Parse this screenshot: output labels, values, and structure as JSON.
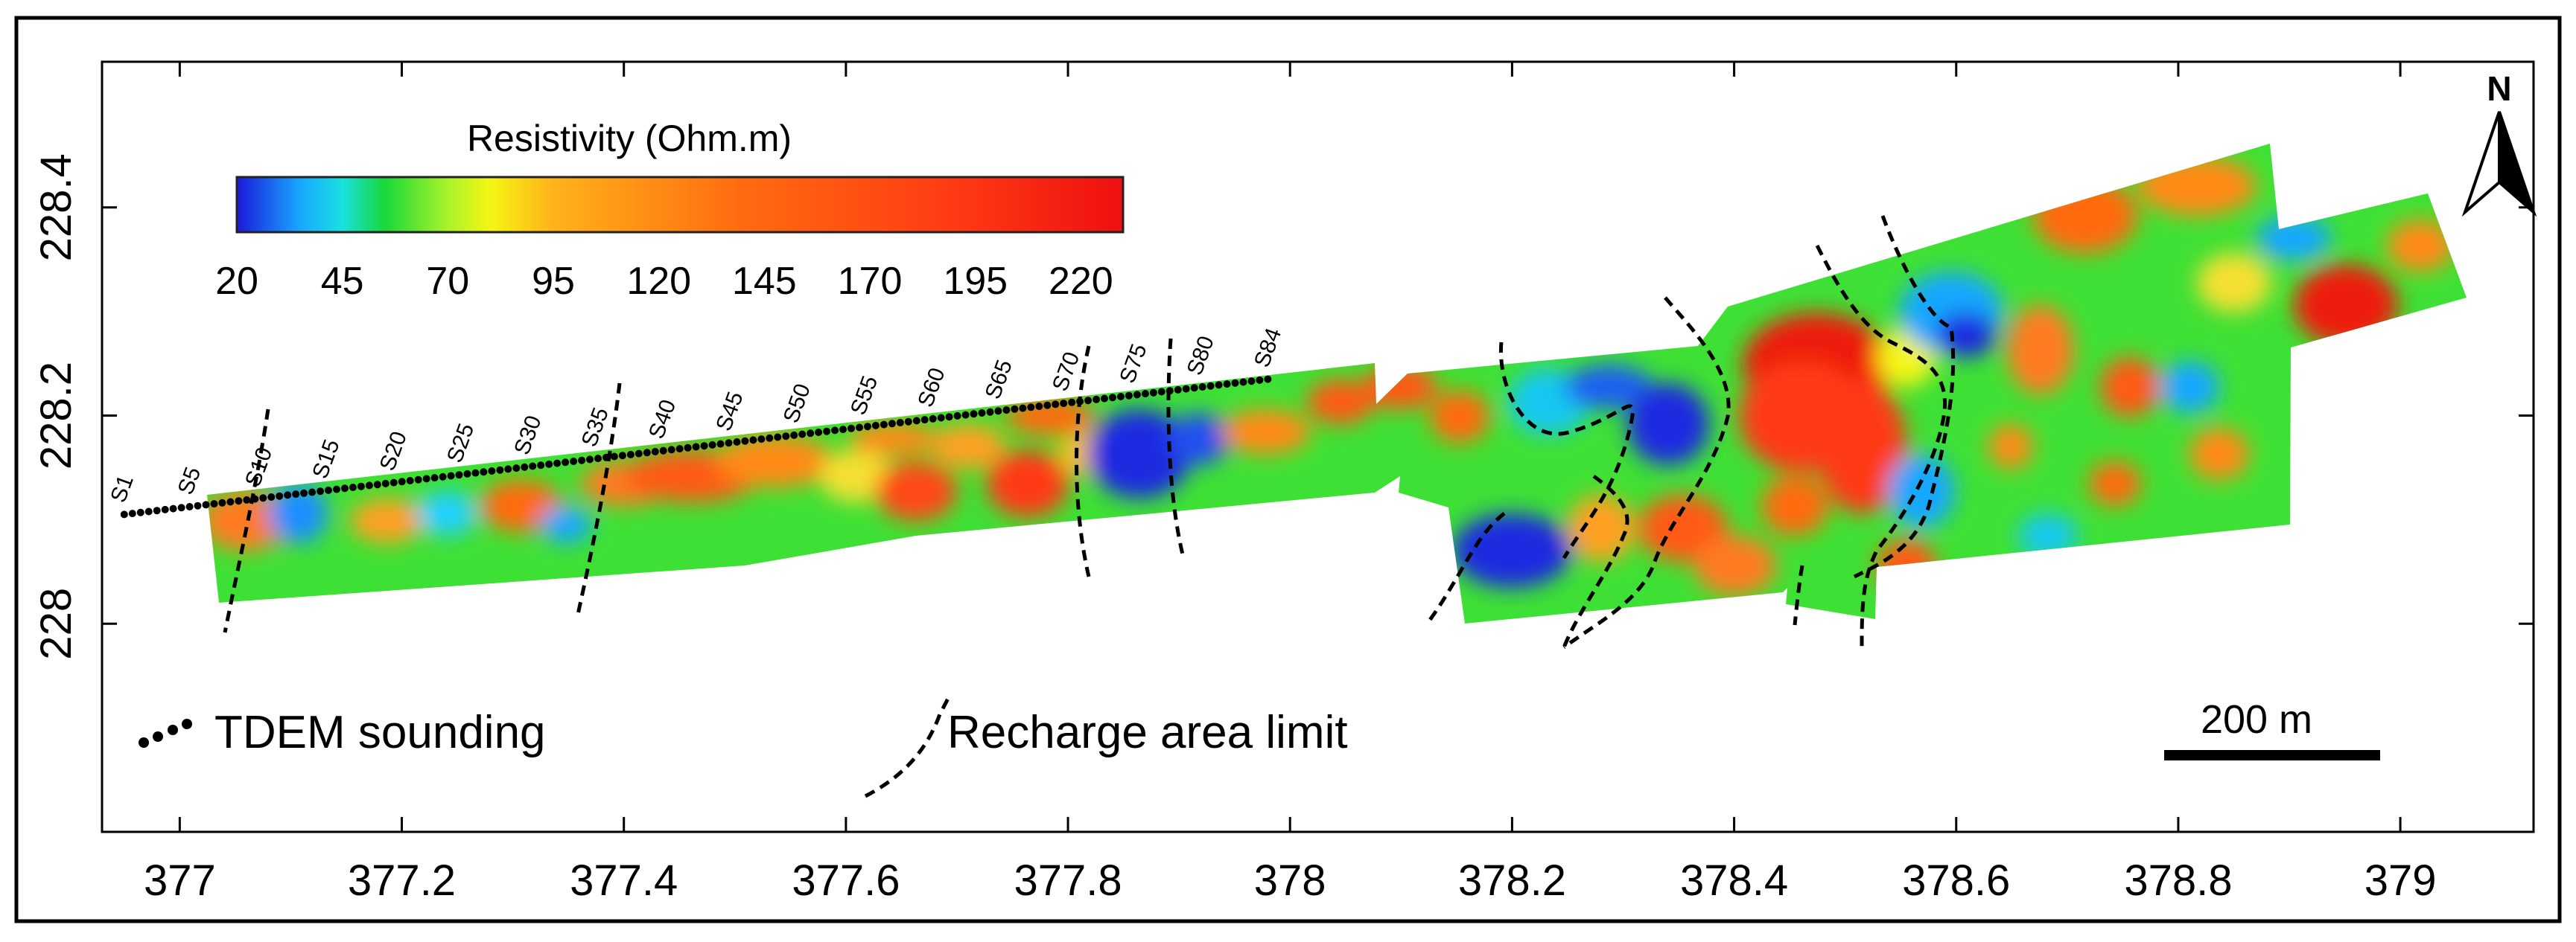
{
  "map": {
    "legend_title": "Resistivity (Ohm.m)",
    "colorbar_ticks": [
      "20",
      "45",
      "70",
      "95",
      "120",
      "145",
      "170",
      "195",
      "220"
    ],
    "colorbar_stops": [
      {
        "value": 20,
        "color": "#1a1adc"
      },
      {
        "value": 35,
        "color": "#19a7ff"
      },
      {
        "value": 45,
        "color": "#19e0e0"
      },
      {
        "value": 55,
        "color": "#18d83a"
      },
      {
        "value": 70,
        "color": "#aaf32a"
      },
      {
        "value": 80,
        "color": "#f5f514"
      },
      {
        "value": 95,
        "color": "#ffb21a"
      },
      {
        "value": 140,
        "color": "#ff6a10"
      },
      {
        "value": 190,
        "color": "#ff3a14"
      },
      {
        "value": 230,
        "color": "#ee1010"
      }
    ],
    "x_ticks": [
      "377",
      "377.2",
      "377.4",
      "377.6",
      "377.8",
      "378",
      "378.2",
      "378.4",
      "378.6",
      "378.8",
      "379"
    ],
    "y_ticks": [
      "228",
      "228.2",
      "228.4"
    ],
    "x_range": [
      376.93,
      379.12
    ],
    "y_range": [
      227.8,
      228.54
    ],
    "north_label": "N",
    "scale_bar_label": "200 m",
    "legend_items": {
      "sounding": "TDEM sounding",
      "recharge": "Recharge area limit"
    },
    "soundings": [
      "S1",
      "S5",
      "S10",
      "S15",
      "S20",
      "S25",
      "S30",
      "S35",
      "S40",
      "S45",
      "S50",
      "S55",
      "S60",
      "S65",
      "S70",
      "S75",
      "S80",
      "S84"
    ],
    "sounding_line": {
      "from": [
        376.95,
        228.105
      ],
      "to": [
        377.98,
        228.235
      ]
    },
    "colors": {
      "frame": "#000000",
      "sounding_dots": "#000000",
      "limit_lines": "#000000"
    }
  }
}
